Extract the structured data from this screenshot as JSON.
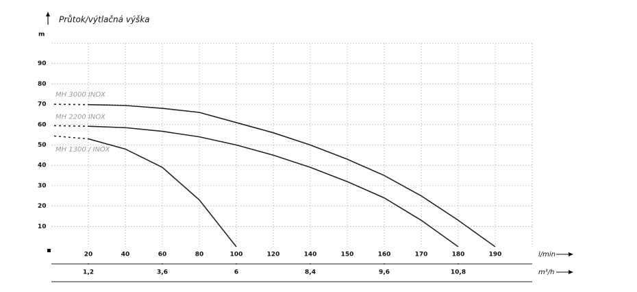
{
  "chart_data": {
    "type": "line",
    "title": "Průtok/výtlačná výška",
    "y_unit": "m",
    "x_unit": "l/min",
    "x2_unit": "m³/h",
    "xlim": [
      0,
      200
    ],
    "xticks": [
      20,
      40,
      60,
      80,
      100,
      120,
      140,
      150,
      160,
      170,
      180,
      190
    ],
    "x2ticks": [
      {
        "value": 1.2,
        "label": "1,2"
      },
      {
        "value": 3.6,
        "label": "3,6"
      },
      6,
      {
        "value": 8.4,
        "label": "8,4"
      },
      {
        "value": 9.6,
        "label": "9,6"
      },
      {
        "value": 10.8,
        "label": "10,8"
      }
    ],
    "ylim": [
      0,
      100
    ],
    "yticks": [
      10,
      20,
      30,
      40,
      50,
      60,
      70,
      80,
      90
    ],
    "grid": true,
    "series": [
      {
        "name": "MH 3000 INOX",
        "color": "#222222",
        "x": [
          0,
          20,
          40,
          60,
          80,
          100,
          120,
          140,
          150,
          160,
          170,
          180,
          190
        ],
        "values": [
          70,
          69.8,
          69.4,
          68,
          66,
          61,
          56,
          50,
          43,
          35,
          25,
          13,
          0
        ]
      },
      {
        "name": "MH 2200 INOX",
        "color": "#222222",
        "x": [
          0,
          20,
          40,
          60,
          80,
          100,
          120,
          140,
          150,
          160,
          170,
          180
        ],
        "values": [
          59.5,
          59.2,
          58.5,
          56.7,
          54,
          50,
          45,
          39,
          32,
          24,
          13,
          0
        ]
      },
      {
        "name": "MH 1300 / INOX",
        "color": "#222222",
        "x": [
          0,
          20,
          40,
          60,
          80,
          100
        ],
        "values": [
          54.5,
          53,
          48,
          39,
          23,
          0
        ]
      }
    ]
  }
}
